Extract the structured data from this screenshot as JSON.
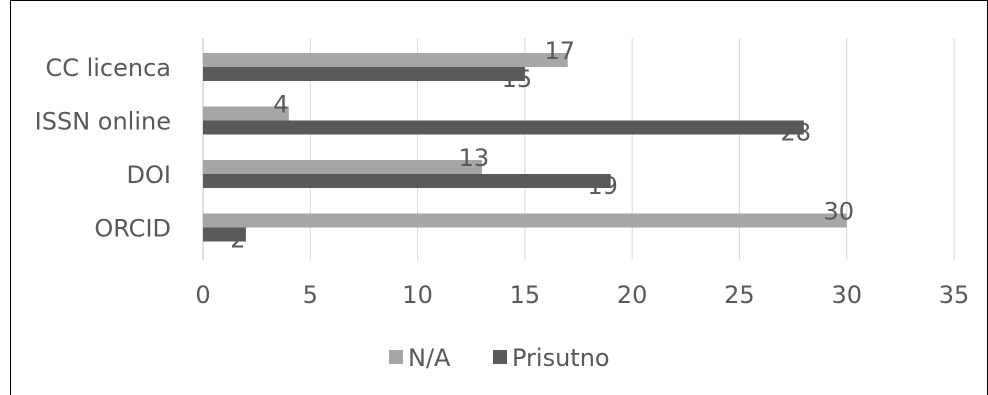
{
  "chart_data": {
    "type": "bar",
    "orientation": "horizontal",
    "categories": [
      "CC licenca",
      "ISSN online",
      "DOI",
      "ORCID"
    ],
    "series": [
      {
        "name": "N/A",
        "values": [
          17,
          4,
          13,
          30
        ],
        "color": "#a6a6a6"
      },
      {
        "name": "Prisutno",
        "values": [
          15,
          28,
          19,
          2
        ],
        "color": "#595959"
      }
    ],
    "xlim": [
      0,
      35
    ],
    "xticks": [
      0,
      5,
      10,
      15,
      20,
      25,
      30,
      35
    ],
    "grid": true,
    "legend_position": "bottom",
    "data_labels": true
  }
}
